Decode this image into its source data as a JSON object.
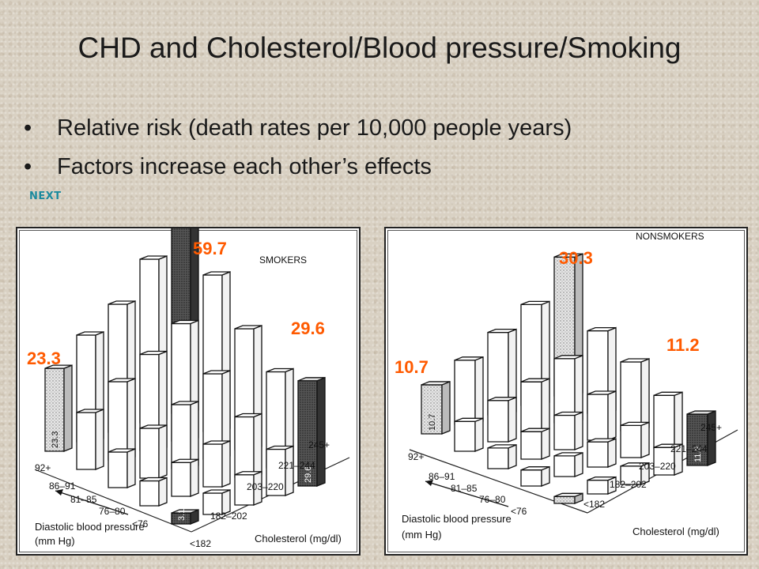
{
  "slide": {
    "title": "CHD and Cholesterol/Blood pressure/Smoking",
    "bullets": [
      "Relative risk (death rates per 10,000 people years)",
      "Factors increase each other’s effects"
    ],
    "next_label": "NEXT"
  },
  "chart_data": [
    {
      "type": "bar",
      "title": "SMOKERS",
      "xlabel": "Diastolic blood pressure (mm Hg)",
      "ylabel": "Cholesterol (mg/dl)",
      "bp_categories": [
        "92+",
        "86–91",
        "81–85",
        "76–80",
        "<76"
      ],
      "chol_categories": [
        "<182",
        "182–202",
        "203–220",
        "221–244",
        "245+"
      ],
      "labeled_values": [
        {
          "bp": "92+",
          "chol": "<182",
          "value": 23.3
        },
        {
          "bp": "92+",
          "chol": "245+",
          "value": 59.7
        },
        {
          "bp": "<76",
          "chol": "245+",
          "value": 29.6
        },
        {
          "bp": "<76",
          "chol": "<182",
          "value": 3.1
        }
      ],
      "callouts": [
        "23.3",
        "59.7",
        "29.6"
      ]
    },
    {
      "type": "bar",
      "title": "NONSMOKERS",
      "xlabel": "Diastolic blood pressure (mm Hg)",
      "ylabel": "Cholesterol (mg/dl)",
      "bp_categories": [
        "92+",
        "86–91",
        "81–85",
        "76–80",
        "<76"
      ],
      "chol_categories": [
        "<182",
        "182–202",
        "203–220",
        "221–244",
        "245+"
      ],
      "labeled_values": [
        {
          "bp": "92+",
          "chol": "<182",
          "value": 10.7
        },
        {
          "bp": "92+",
          "chol": "245+",
          "value": 30.3
        },
        {
          "bp": "<76",
          "chol": "245+",
          "value": 11.2
        }
      ],
      "callouts": [
        "10.7",
        "30.3",
        "11.2"
      ]
    }
  ]
}
